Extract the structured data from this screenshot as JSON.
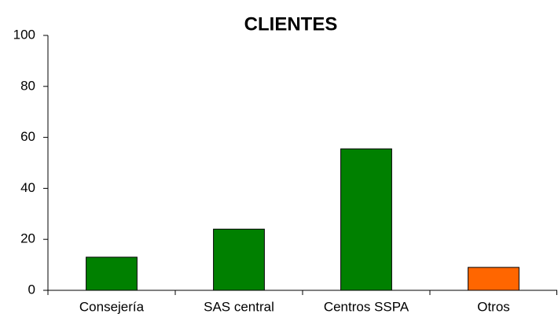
{
  "chart_data": {
    "type": "bar",
    "title": "CLIENTES",
    "categories": [
      "Consejería",
      "SAS central",
      "Centros SSPA",
      "Otros"
    ],
    "values": [
      13,
      24,
      55.5,
      9
    ],
    "colors": [
      "#008000",
      "#008000",
      "#008000",
      "#ff6600"
    ],
    "ylim": [
      0,
      100
    ],
    "yticks": [
      0,
      20,
      40,
      60,
      80,
      100
    ],
    "grid": false
  }
}
